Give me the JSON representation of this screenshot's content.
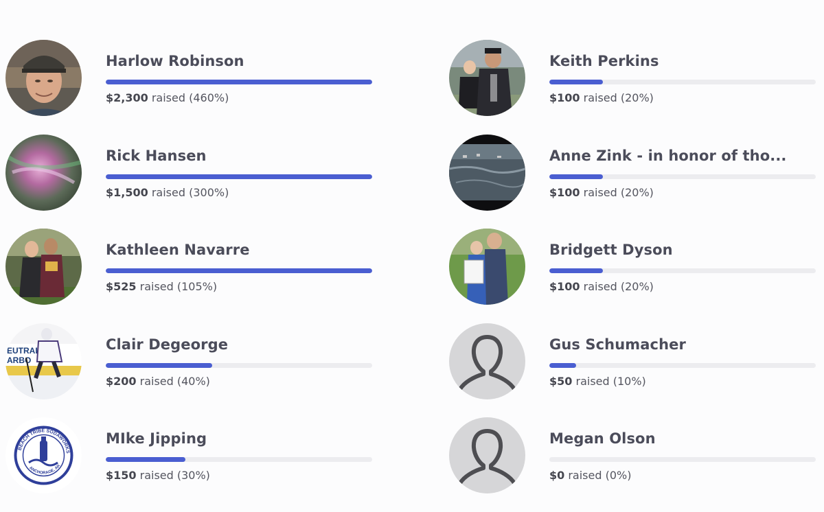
{
  "fundraisers": {
    "left": [
      {
        "name": "Harlow Robinson",
        "amount": "$2,300",
        "suffix": " raised (460%)",
        "progress": 1.0,
        "avatar": "photo-man-cap"
      },
      {
        "name": "Rick Hansen",
        "amount": "$1,500",
        "suffix": " raised (300%)",
        "progress": 1.0,
        "avatar": "photo-aurora"
      },
      {
        "name": "Kathleen Navarre",
        "amount": "$525",
        "suffix": " raised (105%)",
        "progress": 1.0,
        "avatar": "photo-two-women-field"
      },
      {
        "name": "Clair Degeorge",
        "amount": "$200",
        "suffix": " raised (40%)",
        "progress": 0.4,
        "avatar": "photo-hockey-player"
      },
      {
        "name": "MIke Jipping",
        "amount": "$150",
        "suffix": " raised (30%)",
        "progress": 0.3,
        "avatar": "logo-beach-tribe"
      }
    ],
    "right": [
      {
        "name": "Keith Perkins",
        "amount": "$100",
        "suffix": " raised (20%)",
        "progress": 0.2,
        "avatar": "photo-umpire-kid"
      },
      {
        "name": "Anne Zink - in honor of tho...",
        "amount": "$100",
        "suffix": " raised (20%)",
        "progress": 0.2,
        "avatar": "photo-flooded-town"
      },
      {
        "name": "Bridgett Dyson",
        "amount": "$100",
        "suffix": " raised (20%)",
        "progress": 0.2,
        "avatar": "photo-girl-certificate"
      },
      {
        "name": "Gus Schumacher",
        "amount": "$50",
        "suffix": " raised (10%)",
        "progress": 0.1,
        "avatar": "default-user-icon"
      },
      {
        "name": "Megan Olson",
        "amount": "$0",
        "suffix": " raised (0%)",
        "progress": 0.0,
        "avatar": "default-user-icon"
      }
    ]
  },
  "logo_text": {
    "top": "BEACH TRIBE SODAWORKS",
    "bottom": "ANCHORAGE, AK"
  },
  "colors": {
    "accent": "#4a5ed1",
    "track": "#ececef",
    "text": "#4b4c5a"
  }
}
